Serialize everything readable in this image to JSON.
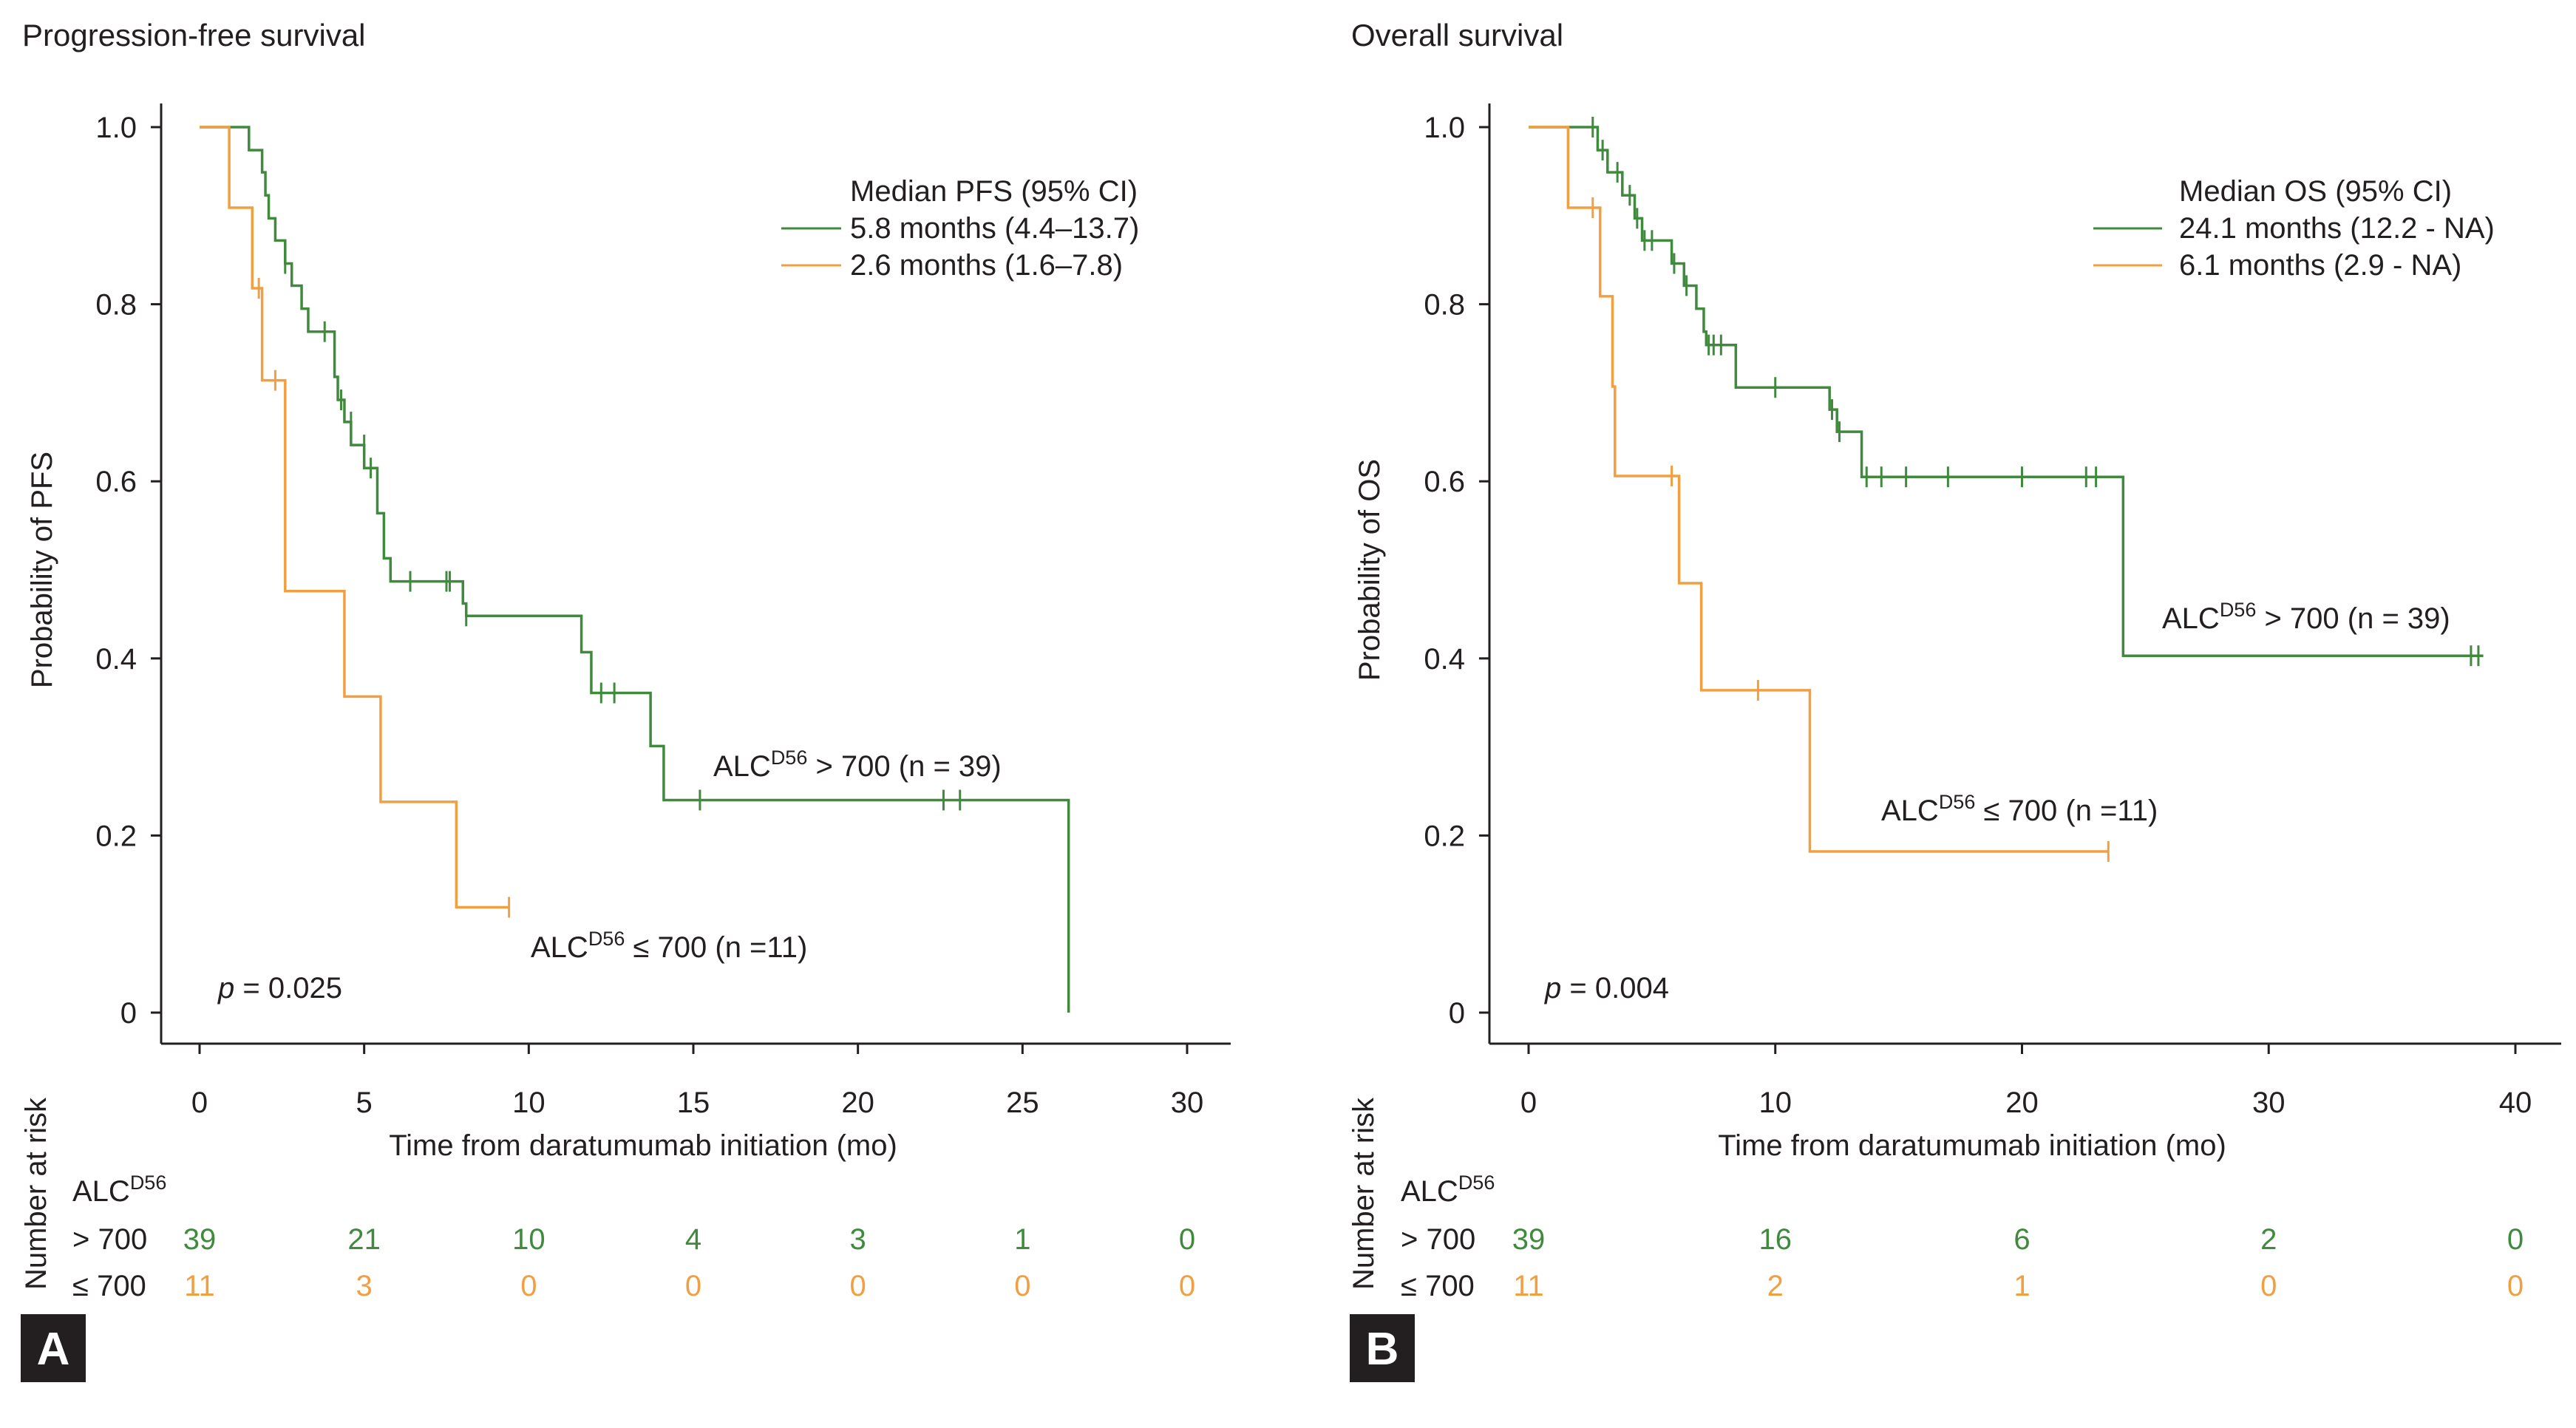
{
  "colors": {
    "high": "#3f8a3c",
    "low": "#f0a042",
    "ink": "#231f20",
    "badge_bg": "#231f20",
    "badge_fg": "#ffffff"
  },
  "chart_data": [
    {
      "type": "line",
      "subtype": "kaplan-meier",
      "panel_label": "A",
      "title": "Progression-free survival",
      "xlabel": "Time from daratumumab initiation (mo)",
      "ylabel": "Probability of PFS",
      "xlim": [
        0,
        30
      ],
      "ylim": [
        0,
        1.0
      ],
      "xticks": [
        0,
        5,
        10,
        15,
        20,
        25,
        30
      ],
      "yticks": [
        0,
        0.2,
        0.4,
        0.6,
        0.8,
        1.0
      ],
      "ytick_labels": [
        "0",
        "0.2",
        "0.4",
        "0.6",
        "0.8",
        "1.0"
      ],
      "legend": {
        "title": "Median PFS (95% CI)",
        "entries": [
          "5.8 months (4.4–13.7)",
          "2.6 months (1.6–7.8)"
        ]
      },
      "p_value": {
        "prefix": "p",
        "text": " = 0.025"
      },
      "series": [
        {
          "name": "ALC D56 > 700",
          "color_key": "high",
          "annotation": {
            "main": "ALC",
            "sup": "D56",
            "rest": " > 700 (n = 39)"
          },
          "steps": [
            [
              0,
              1.0
            ],
            [
              1.4,
              1.0
            ],
            [
              1.5,
              0.974
            ],
            [
              1.9,
              0.949
            ],
            [
              2.0,
              0.923
            ],
            [
              2.1,
              0.897
            ],
            [
              2.3,
              0.872
            ],
            [
              2.6,
              0.846
            ],
            [
              2.8,
              0.821
            ],
            [
              3.1,
              0.795
            ],
            [
              3.3,
              0.769
            ],
            [
              4.1,
              0.718
            ],
            [
              4.2,
              0.692
            ],
            [
              4.4,
              0.667
            ],
            [
              4.6,
              0.641
            ],
            [
              5.0,
              0.615
            ],
            [
              5.4,
              0.564
            ],
            [
              5.6,
              0.513
            ],
            [
              5.8,
              0.487
            ],
            [
              8.0,
              0.462
            ],
            [
              8.1,
              0.448
            ],
            [
              11.6,
              0.407
            ],
            [
              11.9,
              0.361
            ],
            [
              13.7,
              0.301
            ],
            [
              14.1,
              0.24
            ],
            [
              26.4,
              0.24
            ],
            [
              26.4,
              0.0
            ]
          ],
          "end_x": 26.4,
          "censors": [
            [
              2.6,
              0.846
            ],
            [
              3.8,
              0.769
            ],
            [
              4.3,
              0.692
            ],
            [
              4.6,
              0.667
            ],
            [
              5.0,
              0.641
            ],
            [
              5.2,
              0.615
            ],
            [
              6.4,
              0.487
            ],
            [
              7.5,
              0.487
            ],
            [
              7.6,
              0.487
            ],
            [
              8.1,
              0.448
            ],
            [
              12.2,
              0.361
            ],
            [
              12.6,
              0.361
            ],
            [
              15.2,
              0.24
            ],
            [
              22.6,
              0.24
            ],
            [
              23.1,
              0.24
            ]
          ]
        },
        {
          "name": "ALC D56 ≤ 700",
          "color_key": "low",
          "annotation": {
            "main": "ALC",
            "sup": "D56",
            "rest": " ≤ 700 (n =11)"
          },
          "steps": [
            [
              0,
              1.0
            ],
            [
              0.9,
              1.0
            ],
            [
              0.9,
              0.909
            ],
            [
              1.6,
              0.909
            ],
            [
              1.6,
              0.818
            ],
            [
              1.9,
              0.818
            ],
            [
              1.9,
              0.714
            ],
            [
              2.6,
              0.714
            ],
            [
              2.6,
              0.476
            ],
            [
              4.4,
              0.476
            ],
            [
              4.4,
              0.357
            ],
            [
              5.5,
              0.357
            ],
            [
              5.5,
              0.238
            ],
            [
              7.8,
              0.238
            ],
            [
              7.8,
              0.119
            ],
            [
              9.4,
              0.119
            ]
          ],
          "end_x": 9.4,
          "censors": [
            [
              1.8,
              0.818
            ],
            [
              2.3,
              0.714
            ],
            [
              9.4,
              0.119
            ]
          ]
        }
      ],
      "risk_table": {
        "side_label": "Number at risk",
        "group_label": {
          "main": "ALC",
          "sup": "D56"
        },
        "times": [
          0,
          5,
          10,
          15,
          20,
          25,
          30
        ],
        "rows": [
          {
            "label": "> 700",
            "color_key": "high",
            "values": [
              "39",
              "21",
              "10",
              "4",
              "3",
              "1",
              "0"
            ]
          },
          {
            "label": "≤ 700",
            "color_key": "low",
            "values": [
              "11",
              "3",
              "0",
              "0",
              "0",
              "0",
              "0"
            ]
          }
        ]
      }
    },
    {
      "type": "line",
      "subtype": "kaplan-meier",
      "panel_label": "B",
      "title": "Overall survival",
      "xlabel": "Time from daratumumab initiation (mo)",
      "ylabel": "Probability of OS",
      "xlim": [
        0,
        40
      ],
      "ylim": [
        0,
        1.0
      ],
      "xticks": [
        0,
        10,
        20,
        30,
        40
      ],
      "yticks": [
        0,
        0.2,
        0.4,
        0.6,
        0.8,
        1.0
      ],
      "ytick_labels": [
        "0",
        "0.2",
        "0.4",
        "0.6",
        "0.8",
        "1.0"
      ],
      "legend": {
        "title": "Median OS (95% CI)",
        "entries": [
          "24.1 months (12.2 - NA)",
          "6.1 months (2.9 - NA)"
        ]
      },
      "p_value": {
        "prefix": "p",
        "text": " = 0.004"
      },
      "series": [
        {
          "name": "ALC D56 > 700",
          "color_key": "high",
          "annotation": {
            "main": "ALC",
            "sup": "D56",
            "rest": " > 700 (n = 39)"
          },
          "steps": [
            [
              0,
              1.0
            ],
            [
              2.7,
              1.0
            ],
            [
              2.8,
              0.974
            ],
            [
              3.2,
              0.949
            ],
            [
              3.8,
              0.923
            ],
            [
              4.3,
              0.897
            ],
            [
              4.6,
              0.872
            ],
            [
              5.8,
              0.846
            ],
            [
              6.3,
              0.821
            ],
            [
              6.8,
              0.795
            ],
            [
              7.1,
              0.769
            ],
            [
              7.2,
              0.754
            ],
            [
              8.4,
              0.706
            ],
            [
              12.2,
              0.681
            ],
            [
              12.5,
              0.656
            ],
            [
              13.5,
              0.605
            ],
            [
              24.1,
              0.605
            ],
            [
              24.1,
              0.403
            ],
            [
              38.7,
              0.403
            ]
          ],
          "end_x": 38.7,
          "censors": [
            [
              2.6,
              1.0
            ],
            [
              3.0,
              0.974
            ],
            [
              3.6,
              0.949
            ],
            [
              4.1,
              0.923
            ],
            [
              4.4,
              0.897
            ],
            [
              4.7,
              0.872
            ],
            [
              5.0,
              0.872
            ],
            [
              5.9,
              0.846
            ],
            [
              6.4,
              0.821
            ],
            [
              7.3,
              0.754
            ],
            [
              7.5,
              0.754
            ],
            [
              7.8,
              0.754
            ],
            [
              10.0,
              0.706
            ],
            [
              12.3,
              0.681
            ],
            [
              12.6,
              0.656
            ],
            [
              13.7,
              0.605
            ],
            [
              14.3,
              0.605
            ],
            [
              15.3,
              0.605
            ],
            [
              17.0,
              0.605
            ],
            [
              20.0,
              0.605
            ],
            [
              22.6,
              0.605
            ],
            [
              23.0,
              0.605
            ],
            [
              38.2,
              0.403
            ],
            [
              38.5,
              0.403
            ]
          ]
        },
        {
          "name": "ALC D56 ≤ 700",
          "color_key": "low",
          "annotation": {
            "main": "ALC",
            "sup": "D56",
            "rest": " ≤ 700 (n =11)"
          },
          "steps": [
            [
              0,
              1.0
            ],
            [
              1.6,
              1.0
            ],
            [
              1.6,
              0.909
            ],
            [
              2.9,
              0.909
            ],
            [
              2.9,
              0.809
            ],
            [
              3.4,
              0.809
            ],
            [
              3.4,
              0.707
            ],
            [
              3.5,
              0.707
            ],
            [
              3.5,
              0.606
            ],
            [
              6.1,
              0.606
            ],
            [
              6.1,
              0.485
            ],
            [
              7.0,
              0.485
            ],
            [
              7.0,
              0.364
            ],
            [
              11.4,
              0.364
            ],
            [
              11.4,
              0.182
            ],
            [
              23.5,
              0.182
            ]
          ],
          "end_x": 23.5,
          "censors": [
            [
              2.6,
              0.909
            ],
            [
              5.8,
              0.606
            ],
            [
              9.3,
              0.364
            ],
            [
              23.5,
              0.182
            ]
          ]
        }
      ],
      "risk_table": {
        "side_label": "Number at risk",
        "group_label": {
          "main": "ALC",
          "sup": "D56"
        },
        "times": [
          0,
          10,
          20,
          30,
          40
        ],
        "rows": [
          {
            "label": "> 700",
            "color_key": "high",
            "values": [
              "39",
              "16",
              "6",
              "2",
              "0"
            ]
          },
          {
            "label": "≤ 700",
            "color_key": "low",
            "values": [
              "11",
              "2",
              "1",
              "0",
              "0"
            ]
          }
        ]
      }
    }
  ]
}
